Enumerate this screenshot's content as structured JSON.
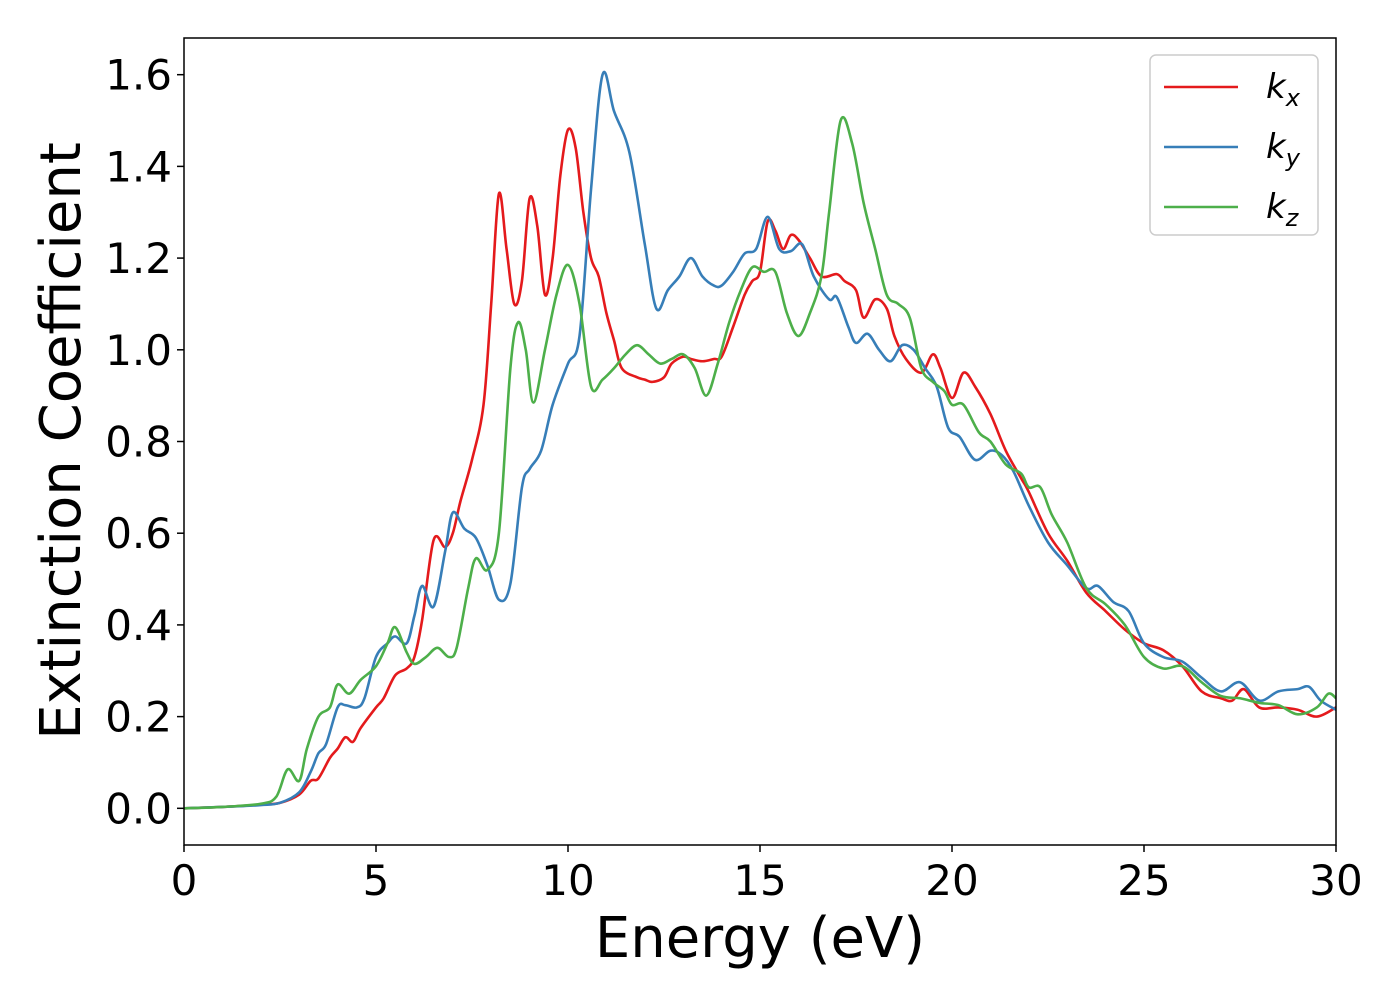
{
  "chart_data": {
    "type": "line",
    "title": "",
    "xlabel": "Energy (eV)",
    "ylabel": "Extinction Coefficient",
    "xlim": [
      0,
      30
    ],
    "ylim": [
      -0.08,
      1.68
    ],
    "xticks": [
      0,
      5,
      10,
      15,
      20,
      25,
      30
    ],
    "xtick_labels": [
      "0",
      "5",
      "10",
      "15",
      "20",
      "25",
      "30"
    ],
    "yticks": [
      0.0,
      0.2,
      0.4,
      0.6,
      0.8,
      1.0,
      1.2,
      1.4,
      1.6
    ],
    "ytick_labels": [
      "0.0",
      "0.2",
      "0.4",
      "0.6",
      "0.8",
      "1.0",
      "1.2",
      "1.4",
      "1.6"
    ],
    "grid": false,
    "legend_position": "top-right",
    "series": [
      {
        "name": "k_x",
        "legend_main": "k",
        "legend_sub": "x",
        "color": "#e41a1c",
        "points": [
          [
            0,
            0.0
          ],
          [
            1,
            0.003
          ],
          [
            2,
            0.008
          ],
          [
            2.5,
            0.012
          ],
          [
            3,
            0.03
          ],
          [
            3.3,
            0.06
          ],
          [
            3.5,
            0.065
          ],
          [
            3.8,
            0.11
          ],
          [
            4.0,
            0.13
          ],
          [
            4.2,
            0.155
          ],
          [
            4.4,
            0.145
          ],
          [
            4.6,
            0.175
          ],
          [
            5.0,
            0.22
          ],
          [
            5.2,
            0.24
          ],
          [
            5.5,
            0.29
          ],
          [
            5.8,
            0.305
          ],
          [
            6.0,
            0.33
          ],
          [
            6.2,
            0.41
          ],
          [
            6.5,
            0.585
          ],
          [
            6.8,
            0.57
          ],
          [
            7.0,
            0.6
          ],
          [
            7.2,
            0.67
          ],
          [
            7.5,
            0.76
          ],
          [
            7.8,
            0.88
          ],
          [
            8.0,
            1.1
          ],
          [
            8.2,
            1.34
          ],
          [
            8.4,
            1.22
          ],
          [
            8.6,
            1.1
          ],
          [
            8.8,
            1.15
          ],
          [
            9.0,
            1.33
          ],
          [
            9.2,
            1.27
          ],
          [
            9.4,
            1.12
          ],
          [
            9.6,
            1.2
          ],
          [
            9.8,
            1.38
          ],
          [
            10.0,
            1.48
          ],
          [
            10.2,
            1.44
          ],
          [
            10.4,
            1.3
          ],
          [
            10.6,
            1.2
          ],
          [
            10.8,
            1.16
          ],
          [
            11.0,
            1.08
          ],
          [
            11.2,
            1.02
          ],
          [
            11.4,
            0.96
          ],
          [
            11.8,
            0.94
          ],
          [
            12.0,
            0.935
          ],
          [
            12.2,
            0.93
          ],
          [
            12.5,
            0.94
          ],
          [
            12.7,
            0.97
          ],
          [
            13.0,
            0.985
          ],
          [
            13.2,
            0.98
          ],
          [
            13.5,
            0.975
          ],
          [
            13.8,
            0.98
          ],
          [
            14.0,
            0.985
          ],
          [
            14.3,
            1.05
          ],
          [
            14.6,
            1.12
          ],
          [
            14.8,
            1.15
          ],
          [
            15.0,
            1.17
          ],
          [
            15.2,
            1.28
          ],
          [
            15.4,
            1.26
          ],
          [
            15.6,
            1.22
          ],
          [
            15.8,
            1.25
          ],
          [
            16.0,
            1.24
          ],
          [
            16.3,
            1.2
          ],
          [
            16.6,
            1.16
          ],
          [
            17.0,
            1.165
          ],
          [
            17.2,
            1.15
          ],
          [
            17.5,
            1.13
          ],
          [
            17.7,
            1.07
          ],
          [
            18.0,
            1.11
          ],
          [
            18.3,
            1.09
          ],
          [
            18.5,
            1.03
          ],
          [
            18.8,
            0.98
          ],
          [
            19.2,
            0.95
          ],
          [
            19.5,
            0.99
          ],
          [
            19.7,
            0.96
          ],
          [
            20.0,
            0.895
          ],
          [
            20.3,
            0.95
          ],
          [
            20.6,
            0.92
          ],
          [
            21.0,
            0.86
          ],
          [
            21.4,
            0.78
          ],
          [
            21.8,
            0.72
          ],
          [
            22.0,
            0.69
          ],
          [
            22.5,
            0.6
          ],
          [
            23.0,
            0.54
          ],
          [
            23.5,
            0.47
          ],
          [
            24.0,
            0.43
          ],
          [
            24.5,
            0.39
          ],
          [
            25.0,
            0.36
          ],
          [
            25.5,
            0.345
          ],
          [
            26.0,
            0.31
          ],
          [
            26.5,
            0.255
          ],
          [
            27.0,
            0.24
          ],
          [
            27.3,
            0.235
          ],
          [
            27.6,
            0.26
          ],
          [
            28.0,
            0.22
          ],
          [
            28.5,
            0.22
          ],
          [
            29.0,
            0.215
          ],
          [
            29.5,
            0.2
          ],
          [
            30.0,
            0.22
          ]
        ]
      },
      {
        "name": "k_y",
        "legend_main": "k",
        "legend_sub": "y",
        "color": "#377eb8",
        "points": [
          [
            0,
            0.0
          ],
          [
            1,
            0.003
          ],
          [
            2,
            0.007
          ],
          [
            2.5,
            0.012
          ],
          [
            3,
            0.035
          ],
          [
            3.3,
            0.08
          ],
          [
            3.5,
            0.12
          ],
          [
            3.7,
            0.14
          ],
          [
            4.0,
            0.22
          ],
          [
            4.2,
            0.225
          ],
          [
            4.5,
            0.22
          ],
          [
            4.7,
            0.24
          ],
          [
            5.0,
            0.33
          ],
          [
            5.3,
            0.36
          ],
          [
            5.5,
            0.375
          ],
          [
            5.8,
            0.36
          ],
          [
            6.0,
            0.42
          ],
          [
            6.2,
            0.485
          ],
          [
            6.5,
            0.44
          ],
          [
            6.8,
            0.56
          ],
          [
            7.0,
            0.645
          ],
          [
            7.3,
            0.61
          ],
          [
            7.6,
            0.59
          ],
          [
            7.9,
            0.53
          ],
          [
            8.2,
            0.455
          ],
          [
            8.5,
            0.49
          ],
          [
            8.8,
            0.7
          ],
          [
            9.0,
            0.74
          ],
          [
            9.3,
            0.78
          ],
          [
            9.6,
            0.88
          ],
          [
            10.0,
            0.97
          ],
          [
            10.3,
            1.03
          ],
          [
            10.6,
            1.35
          ],
          [
            10.9,
            1.6
          ],
          [
            11.2,
            1.52
          ],
          [
            11.6,
            1.43
          ],
          [
            12.0,
            1.23
          ],
          [
            12.3,
            1.09
          ],
          [
            12.6,
            1.13
          ],
          [
            12.9,
            1.16
          ],
          [
            13.2,
            1.2
          ],
          [
            13.5,
            1.16
          ],
          [
            13.8,
            1.14
          ],
          [
            14.0,
            1.14
          ],
          [
            14.3,
            1.17
          ],
          [
            14.6,
            1.21
          ],
          [
            14.9,
            1.22
          ],
          [
            15.2,
            1.29
          ],
          [
            15.5,
            1.22
          ],
          [
            15.8,
            1.215
          ],
          [
            16.1,
            1.23
          ],
          [
            16.4,
            1.16
          ],
          [
            16.8,
            1.11
          ],
          [
            17.0,
            1.115
          ],
          [
            17.3,
            1.05
          ],
          [
            17.5,
            1.015
          ],
          [
            17.8,
            1.035
          ],
          [
            18.1,
            1.0
          ],
          [
            18.4,
            0.975
          ],
          [
            18.7,
            1.01
          ],
          [
            19.0,
            1.0
          ],
          [
            19.3,
            0.96
          ],
          [
            19.6,
            0.92
          ],
          [
            19.9,
            0.83
          ],
          [
            20.2,
            0.81
          ],
          [
            20.6,
            0.76
          ],
          [
            21.0,
            0.78
          ],
          [
            21.3,
            0.77
          ],
          [
            21.6,
            0.735
          ],
          [
            22.0,
            0.66
          ],
          [
            22.5,
            0.58
          ],
          [
            23.0,
            0.53
          ],
          [
            23.5,
            0.48
          ],
          [
            23.8,
            0.485
          ],
          [
            24.2,
            0.45
          ],
          [
            24.6,
            0.43
          ],
          [
            25.0,
            0.36
          ],
          [
            25.5,
            0.33
          ],
          [
            26.0,
            0.32
          ],
          [
            26.5,
            0.285
          ],
          [
            27.0,
            0.255
          ],
          [
            27.5,
            0.275
          ],
          [
            28.0,
            0.235
          ],
          [
            28.5,
            0.255
          ],
          [
            29.0,
            0.26
          ],
          [
            29.3,
            0.265
          ],
          [
            29.6,
            0.235
          ],
          [
            30.0,
            0.215
          ]
        ]
      },
      {
        "name": "k_z",
        "legend_main": "k",
        "legend_sub": "z",
        "color": "#4daf4a",
        "points": [
          [
            0,
            0.0
          ],
          [
            1,
            0.003
          ],
          [
            2,
            0.01
          ],
          [
            2.4,
            0.025
          ],
          [
            2.7,
            0.085
          ],
          [
            3.0,
            0.06
          ],
          [
            3.2,
            0.13
          ],
          [
            3.5,
            0.2
          ],
          [
            3.8,
            0.22
          ],
          [
            4.0,
            0.27
          ],
          [
            4.3,
            0.25
          ],
          [
            4.6,
            0.28
          ],
          [
            5.0,
            0.31
          ],
          [
            5.3,
            0.36
          ],
          [
            5.5,
            0.395
          ],
          [
            5.8,
            0.34
          ],
          [
            6.0,
            0.315
          ],
          [
            6.3,
            0.33
          ],
          [
            6.6,
            0.35
          ],
          [
            6.9,
            0.33
          ],
          [
            7.1,
            0.35
          ],
          [
            7.4,
            0.48
          ],
          [
            7.6,
            0.545
          ],
          [
            7.9,
            0.52
          ],
          [
            8.2,
            0.6
          ],
          [
            8.5,
            0.96
          ],
          [
            8.7,
            1.06
          ],
          [
            8.9,
            1.0
          ],
          [
            9.1,
            0.885
          ],
          [
            9.4,
            1.0
          ],
          [
            9.7,
            1.12
          ],
          [
            10.0,
            1.185
          ],
          [
            10.3,
            1.1
          ],
          [
            10.6,
            0.92
          ],
          [
            10.9,
            0.935
          ],
          [
            11.2,
            0.96
          ],
          [
            11.5,
            0.99
          ],
          [
            11.8,
            1.01
          ],
          [
            12.1,
            0.99
          ],
          [
            12.4,
            0.97
          ],
          [
            12.7,
            0.98
          ],
          [
            13.0,
            0.99
          ],
          [
            13.3,
            0.96
          ],
          [
            13.6,
            0.9
          ],
          [
            13.9,
            0.97
          ],
          [
            14.2,
            1.06
          ],
          [
            14.5,
            1.13
          ],
          [
            14.8,
            1.18
          ],
          [
            15.1,
            1.17
          ],
          [
            15.4,
            1.17
          ],
          [
            15.7,
            1.08
          ],
          [
            16.0,
            1.03
          ],
          [
            16.3,
            1.08
          ],
          [
            16.6,
            1.16
          ],
          [
            16.8,
            1.3
          ],
          [
            17.1,
            1.5
          ],
          [
            17.4,
            1.45
          ],
          [
            17.7,
            1.32
          ],
          [
            18.0,
            1.22
          ],
          [
            18.3,
            1.12
          ],
          [
            18.6,
            1.1
          ],
          [
            18.9,
            1.07
          ],
          [
            19.2,
            0.96
          ],
          [
            19.5,
            0.93
          ],
          [
            19.8,
            0.91
          ],
          [
            20.0,
            0.88
          ],
          [
            20.3,
            0.88
          ],
          [
            20.7,
            0.82
          ],
          [
            21.0,
            0.8
          ],
          [
            21.4,
            0.75
          ],
          [
            21.8,
            0.73
          ],
          [
            22.0,
            0.7
          ],
          [
            22.3,
            0.7
          ],
          [
            22.6,
            0.64
          ],
          [
            23.0,
            0.58
          ],
          [
            23.5,
            0.48
          ],
          [
            24.0,
            0.445
          ],
          [
            24.5,
            0.4
          ],
          [
            25.0,
            0.33
          ],
          [
            25.5,
            0.305
          ],
          [
            26.0,
            0.31
          ],
          [
            26.5,
            0.275
          ],
          [
            27.0,
            0.245
          ],
          [
            27.5,
            0.24
          ],
          [
            28.0,
            0.23
          ],
          [
            28.5,
            0.225
          ],
          [
            29.0,
            0.205
          ],
          [
            29.5,
            0.22
          ],
          [
            29.8,
            0.25
          ],
          [
            30.0,
            0.24
          ]
        ]
      }
    ]
  }
}
